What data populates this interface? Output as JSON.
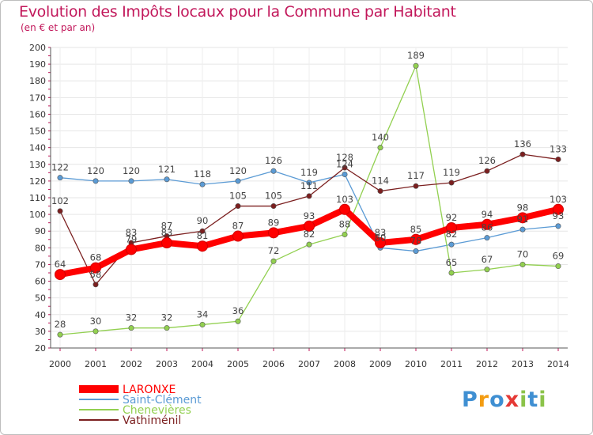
{
  "header": {
    "title": "Evolution des Impôts locaux pour la Commune par Habitant",
    "subtitle": "(en € et par an)"
  },
  "brand": {
    "letters": [
      "P",
      "r",
      "o",
      "x",
      "i",
      "t",
      "i"
    ],
    "colors": [
      "#3f8fd2",
      "#f39c12",
      "#3f8fd2",
      "#e53935",
      "#8bc34a",
      "#3f8fd2",
      "#8bc34a"
    ]
  },
  "chart_data": {
    "type": "line",
    "title": "Evolution des Impôts locaux pour la Commune par Habitant",
    "subtitle": "(en € et par an)",
    "x": [
      2000,
      2001,
      2002,
      2003,
      2004,
      2005,
      2006,
      2007,
      2008,
      2009,
      2010,
      2011,
      2012,
      2013,
      2014
    ],
    "ylim": [
      20,
      200
    ],
    "yticks": [
      20,
      30,
      40,
      50,
      60,
      70,
      80,
      90,
      100,
      110,
      120,
      130,
      140,
      150,
      160,
      170,
      180,
      190,
      200
    ],
    "grid": true,
    "legend": "bottom-left",
    "series": [
      {
        "name": "LARONXE",
        "color": "#ff0000",
        "values": [
          64,
          68,
          79,
          83,
          81,
          87,
          89,
          93,
          103,
          83,
          85,
          92,
          94,
          98,
          103
        ]
      },
      {
        "name": "Saint-Clément",
        "color": "#5b9bd5",
        "values": [
          122,
          120,
          120,
          121,
          118,
          120,
          126,
          119,
          124,
          80,
          78,
          82,
          86,
          91,
          93
        ]
      },
      {
        "name": "Chenevières",
        "color": "#92d050",
        "values": [
          28,
          30,
          32,
          32,
          34,
          36,
          72,
          82,
          88,
          140,
          189,
          65,
          67,
          70,
          69
        ]
      },
      {
        "name": "Vathiménil",
        "color": "#7b1f1f",
        "values": [
          102,
          58,
          83,
          87,
          90,
          105,
          105,
          111,
          128,
          114,
          117,
          119,
          126,
          136,
          133
        ]
      }
    ]
  }
}
